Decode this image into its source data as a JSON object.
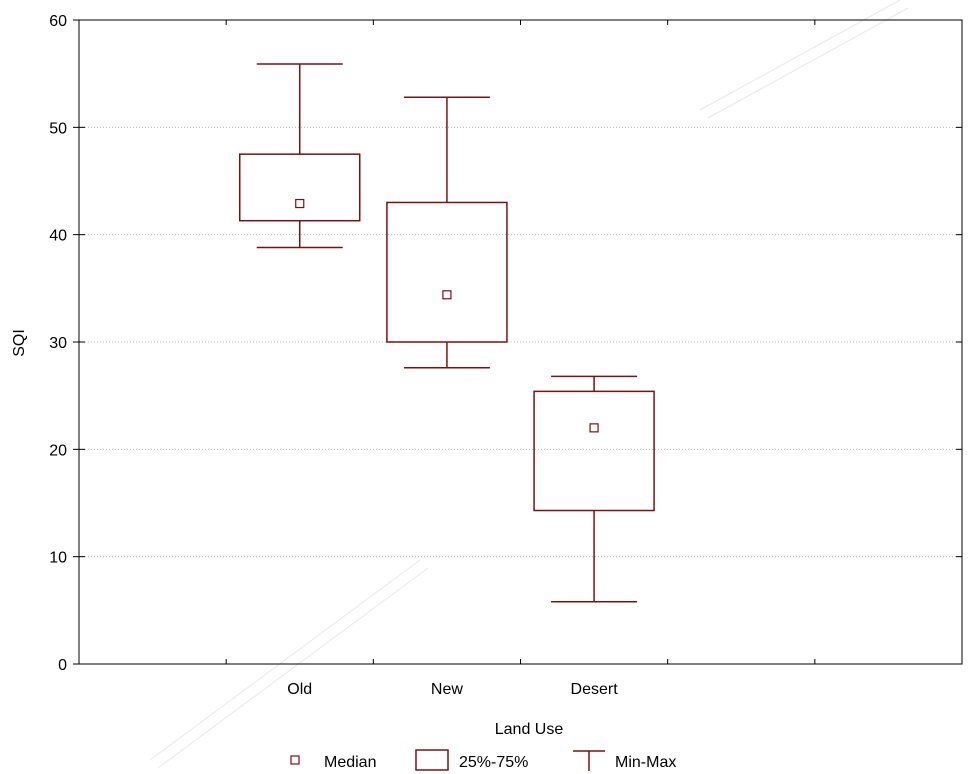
{
  "chart_data": {
    "type": "boxplot",
    "xlabel": "Land Use",
    "ylabel": "SQI",
    "ylim": [
      0,
      60
    ],
    "yticks": [
      0,
      10,
      20,
      30,
      40,
      50,
      60
    ],
    "categories": [
      "Old",
      "New",
      "Desert"
    ],
    "grid": "horizontal dotted",
    "legend_position": "bottom",
    "legend": [
      "Median",
      "25%-75%",
      "Min-Max"
    ],
    "boxes": [
      {
        "category": "Old",
        "min": 38.8,
        "q1": 41.3,
        "median": 42.9,
        "q3": 47.5,
        "max": 55.9
      },
      {
        "category": "New",
        "min": 27.6,
        "q1": 30.0,
        "median": 34.4,
        "q3": 43.0,
        "max": 52.8
      },
      {
        "category": "Desert",
        "min": 5.8,
        "q1": 14.3,
        "median": 22.0,
        "q3": 25.4,
        "max": 26.8
      }
    ],
    "colors": {
      "box": "#7b1010",
      "grid": "#b0b0b0",
      "axis": "#000000"
    }
  }
}
